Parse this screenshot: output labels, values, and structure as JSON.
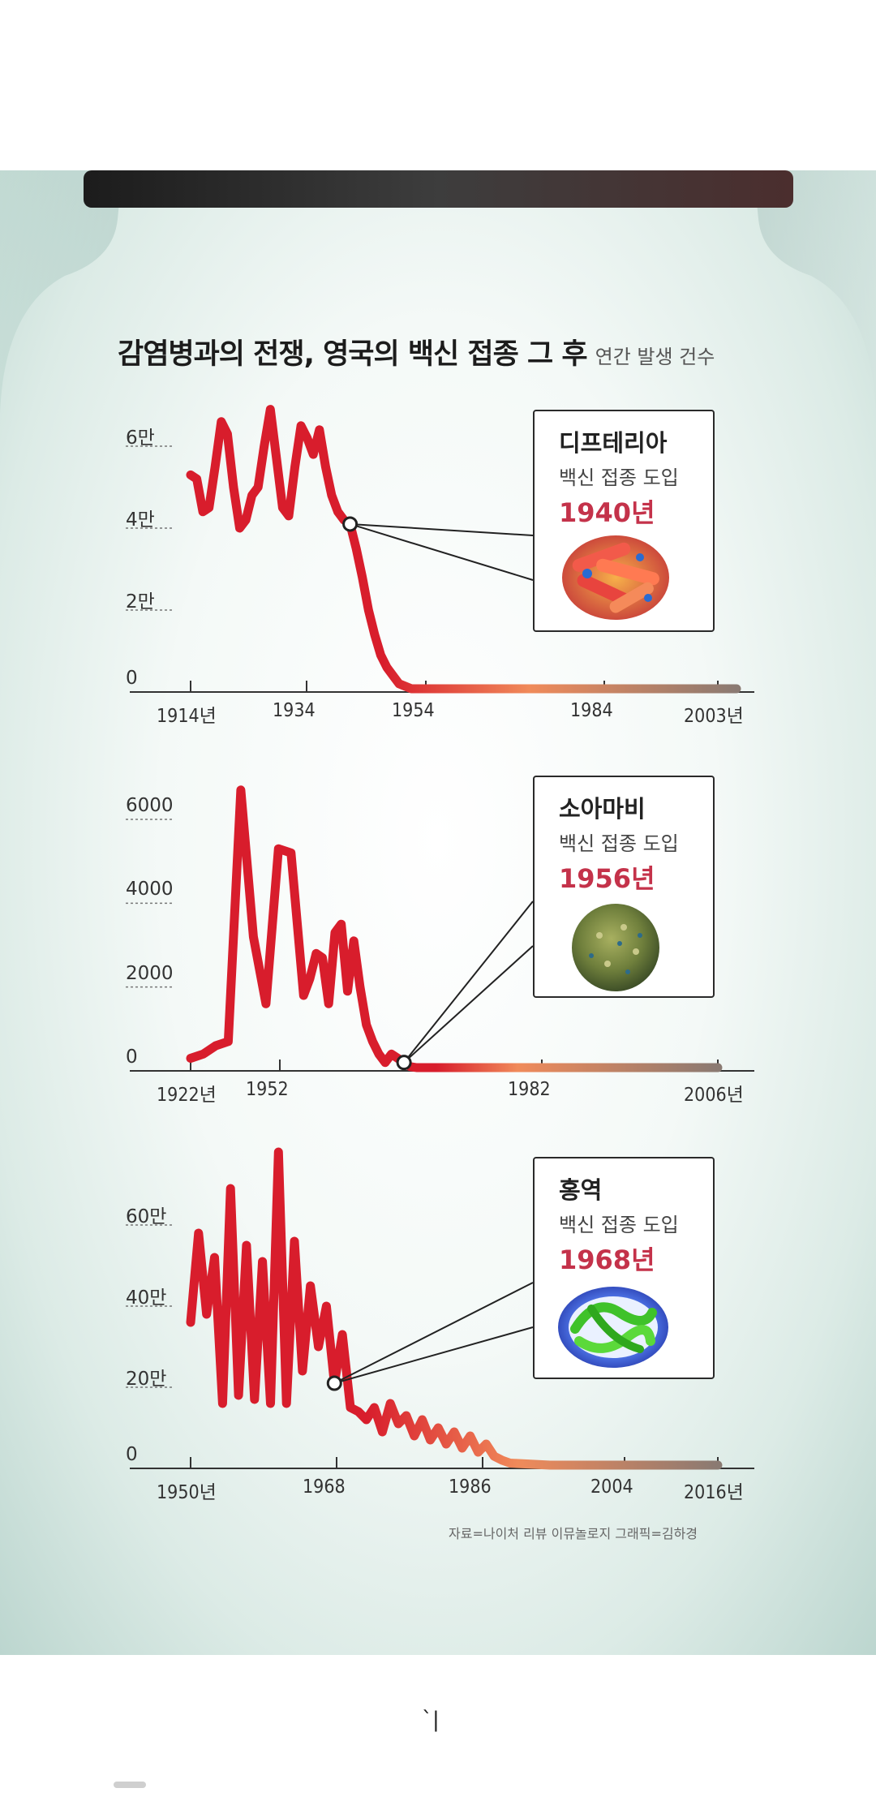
{
  "title": "감염병과의 전쟁, 영국의 백신 접종 그 후",
  "subtitle": "연간 발생 건수",
  "source": "자료=나이처 리뷰 이뮤놀로지  그래픽=김하경",
  "footer_mark": "ˋ|",
  "colors": {
    "line_start": "#d81d2c",
    "line_end": "#8a7a72",
    "vaccine_year": "#c4324a"
  },
  "chart_data": [
    {
      "type": "line",
      "disease": "디프테리아",
      "vaccine_note": "백신 접종 도입",
      "vaccine_year_label": "1940년",
      "vaccine_year": 1940,
      "icon": "bacteria-icon",
      "xlim": [
        1914,
        2003
      ],
      "ylim": [
        0,
        70000
      ],
      "x_ticks": [
        {
          "value": 1914,
          "label": "1914년"
        },
        {
          "value": 1934,
          "label": "1934"
        },
        {
          "value": 1954,
          "label": "1954"
        },
        {
          "value": 1984,
          "label": "1984"
        },
        {
          "value": 2003,
          "label": "2003년"
        }
      ],
      "y_ticks": [
        {
          "value": 0,
          "label": "0"
        },
        {
          "value": 20000,
          "label": "2만"
        },
        {
          "value": 40000,
          "label": "4만"
        },
        {
          "value": 60000,
          "label": "6만"
        }
      ],
      "x": [
        1914,
        1915,
        1916,
        1917,
        1918,
        1919,
        1920,
        1921,
        1922,
        1923,
        1924,
        1925,
        1926,
        1927,
        1928,
        1929,
        1930,
        1931,
        1932,
        1933,
        1934,
        1935,
        1936,
        1937,
        1938,
        1939,
        1940,
        1941,
        1942,
        1943,
        1944,
        1945,
        1946,
        1947,
        1948,
        1950,
        1955,
        1960,
        1970,
        1980,
        1990,
        2003
      ],
      "y": [
        53000,
        52000,
        44000,
        45000,
        55000,
        66000,
        63000,
        50000,
        40000,
        42000,
        48000,
        50000,
        60000,
        69000,
        57000,
        45000,
        43000,
        55000,
        65000,
        62000,
        58000,
        64000,
        55000,
        48000,
        44000,
        42000,
        41000,
        35000,
        28000,
        20000,
        14000,
        9000,
        6000,
        4000,
        2000,
        600,
        200,
        100,
        50,
        40,
        30,
        20
      ]
    },
    {
      "type": "line",
      "disease": "소아마비",
      "vaccine_note": "백신 접종 도입",
      "vaccine_year_label": "1956년",
      "vaccine_year": 1956,
      "icon": "poliovirus-icon",
      "xlim": [
        1922,
        2006
      ],
      "ylim": [
        0,
        7000
      ],
      "x_ticks": [
        {
          "value": 1922,
          "label": "1922년"
        },
        {
          "value": 1952,
          "label": "1952"
        },
        {
          "value": 1982,
          "label": "1982"
        },
        {
          "value": 2006,
          "label": "2006년"
        }
      ],
      "y_ticks": [
        {
          "value": 0,
          "label": "0"
        },
        {
          "value": 2000,
          "label": "2000"
        },
        {
          "value": 4000,
          "label": "4000"
        },
        {
          "value": 6000,
          "label": "6000"
        }
      ],
      "x": [
        1922,
        1924,
        1926,
        1928,
        1930,
        1932,
        1934,
        1936,
        1938,
        1940,
        1941,
        1942,
        1943,
        1944,
        1945,
        1946,
        1947,
        1948,
        1949,
        1950,
        1951,
        1952,
        1953,
        1954,
        1955,
        1956,
        1957,
        1958,
        1959,
        1960,
        1961,
        1962,
        1963,
        1964,
        1966,
        1970,
        1980,
        1990,
        2006
      ],
      "y": [
        300,
        400,
        600,
        700,
        6700,
        3200,
        1600,
        5300,
        5200,
        1800,
        2200,
        2800,
        2700,
        1600,
        3300,
        3500,
        1900,
        3100,
        2000,
        1100,
        700,
        400,
        200,
        400,
        300,
        200,
        100,
        50,
        30,
        20,
        10,
        5,
        3,
        2,
        1,
        1,
        1,
        0,
        0
      ]
    },
    {
      "type": "line",
      "disease": "홍역",
      "vaccine_note": "백신 접종 도입",
      "vaccine_year_label": "1968년",
      "vaccine_year": 1968,
      "icon": "measles-virus-icon",
      "xlim": [
        1950,
        2016
      ],
      "ylim": [
        0,
        800000
      ],
      "x_ticks": [
        {
          "value": 1950,
          "label": "1950년"
        },
        {
          "value": 1968,
          "label": "1968"
        },
        {
          "value": 1986,
          "label": "1986"
        },
        {
          "value": 2004,
          "label": "2004"
        },
        {
          "value": 2016,
          "label": "2016년"
        }
      ],
      "y_ticks": [
        {
          "value": 0,
          "label": "0"
        },
        {
          "value": 200000,
          "label": "20만"
        },
        {
          "value": 400000,
          "label": "40만"
        },
        {
          "value": 600000,
          "label": "60만"
        }
      ],
      "x": [
        1950,
        1951,
        1952,
        1953,
        1954,
        1955,
        1956,
        1957,
        1958,
        1959,
        1960,
        1961,
        1962,
        1963,
        1964,
        1965,
        1966,
        1967,
        1968,
        1969,
        1970,
        1971,
        1972,
        1973,
        1974,
        1975,
        1976,
        1977,
        1978,
        1979,
        1980,
        1981,
        1982,
        1983,
        1984,
        1985,
        1986,
        1987,
        1988,
        1989,
        1990,
        1995,
        2000,
        2005,
        2010,
        2016
      ],
      "y": [
        360000,
        580000,
        380000,
        520000,
        160000,
        690000,
        180000,
        550000,
        170000,
        510000,
        160000,
        780000,
        160000,
        560000,
        240000,
        450000,
        300000,
        400000,
        210000,
        330000,
        150000,
        140000,
        120000,
        150000,
        90000,
        160000,
        110000,
        130000,
        80000,
        120000,
        70000,
        100000,
        60000,
        90000,
        50000,
        80000,
        40000,
        60000,
        30000,
        20000,
        13000,
        8000,
        5000,
        3000,
        2000,
        1000
      ]
    }
  ]
}
